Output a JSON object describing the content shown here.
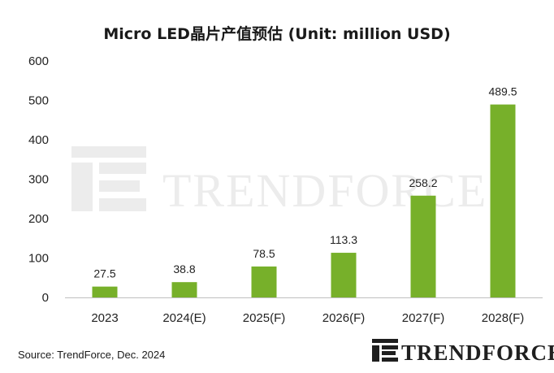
{
  "chart_data": {
    "type": "bar",
    "title": "Micro LED晶片产值预估 (Unit: million USD)",
    "categories": [
      "2023",
      "2024(E)",
      "2025(F)",
      "2026(F)",
      "2027(F)",
      "2028(F)"
    ],
    "values": [
      27.5,
      38.8,
      78.5,
      113.3,
      258.2,
      489.5
    ],
    "data_labels": [
      "27.5",
      "38.8",
      "78.5",
      "113.3",
      "258.2",
      "489.5"
    ],
    "ylim": [
      0,
      600
    ],
    "yticks": [
      "0",
      "100",
      "200",
      "300",
      "400",
      "500",
      "600"
    ],
    "xlabel": "",
    "ylabel": "",
    "grid": false,
    "legend": "none",
    "bar_color": "#77b02a"
  },
  "source": "Source: TrendForce, Dec. 2024",
  "watermark": "TRENDFORCE",
  "logo": {
    "text": "TRENDFORCE",
    "icon": "trendforce-logo-icon",
    "color": "#1f1f1f"
  }
}
